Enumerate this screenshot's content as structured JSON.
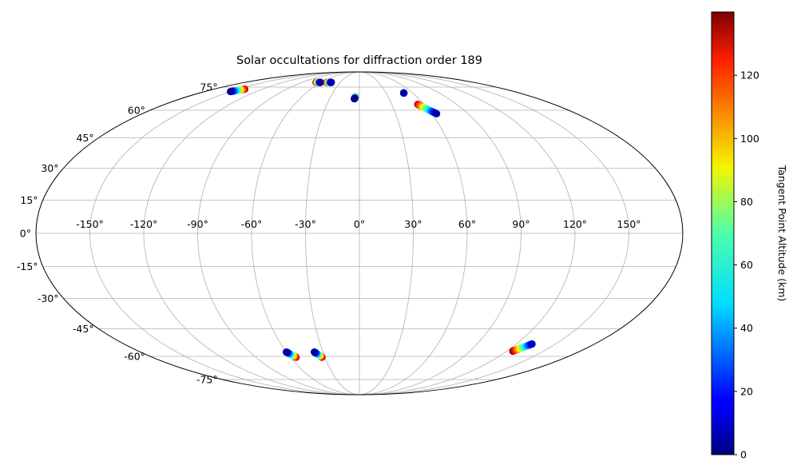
{
  "chart_data": {
    "type": "scatter",
    "projection": "mollweide",
    "title": "Solar occultations for diffraction order 189",
    "grid": true,
    "longitude_ticks": [
      -150,
      -120,
      -90,
      -60,
      -30,
      0,
      30,
      60,
      90,
      120,
      150
    ],
    "longitude_tick_labels": [
      "-150°",
      "-120°",
      "-90°",
      "-60°",
      "-30°",
      "0°",
      "30°",
      "60°",
      "90°",
      "120°",
      "150°"
    ],
    "latitude_ticks": [
      75,
      60,
      45,
      30,
      15,
      0,
      -15,
      -30,
      -45,
      -60,
      -75
    ],
    "latitude_tick_labels": [
      "75°",
      "60°",
      "45°",
      "30°",
      "15°",
      "0°",
      "-15°",
      "-30°",
      "-45°",
      "-60°",
      "-75°"
    ],
    "colorbar": {
      "label": "Tangent Point Altitude (km)",
      "range": [
        0,
        140
      ],
      "ticks": [
        0,
        20,
        40,
        60,
        80,
        100,
        120
      ],
      "tick_labels": [
        "0",
        "20",
        "40",
        "60",
        "80",
        "100",
        "120"
      ],
      "colormap": "jet"
    },
    "tracks": [
      {
        "start": {
          "lon": -150,
          "lat": 71.8,
          "alt": 5
        },
        "end": {
          "lon": -142,
          "lat": 73.5,
          "alt": 135
        }
      },
      {
        "start": {
          "lon": -61,
          "lat": 78.6,
          "alt": 5
        },
        "end": {
          "lon": -68,
          "lat": 78.6,
          "alt": 135
        }
      },
      {
        "start": {
          "lon": -44,
          "lat": 78.6,
          "alt": 5
        },
        "end": {
          "lon": -51,
          "lat": 78.6,
          "alt": 135
        }
      },
      {
        "start": {
          "lon": -5,
          "lat": 67,
          "alt": 2
        },
        "end": {
          "lon": -4,
          "lat": 68.5,
          "alt": 95
        }
      },
      {
        "start": {
          "lon": 50,
          "lat": 70.8,
          "alt": 5
        },
        "end": {
          "lon": 50,
          "lat": 70.8,
          "alt": 5
        }
      },
      {
        "start": {
          "lon": 64,
          "lat": 58,
          "alt": 5
        },
        "end": {
          "lon": 54,
          "lat": 63.5,
          "alt": 130
        }
      },
      {
        "start": {
          "lon": -60,
          "lat": -57.5,
          "alt": 5
        },
        "end": {
          "lon": -55,
          "lat": -60.5,
          "alt": 135
        }
      },
      {
        "start": {
          "lon": -37,
          "lat": -57.5,
          "alt": 5
        },
        "end": {
          "lon": -32.5,
          "lat": -60.5,
          "alt": 135
        }
      },
      {
        "start": {
          "lon": 132,
          "lat": -53,
          "alt": 10
        },
        "end": {
          "lon": 125,
          "lat": -57,
          "alt": 140
        }
      }
    ]
  }
}
